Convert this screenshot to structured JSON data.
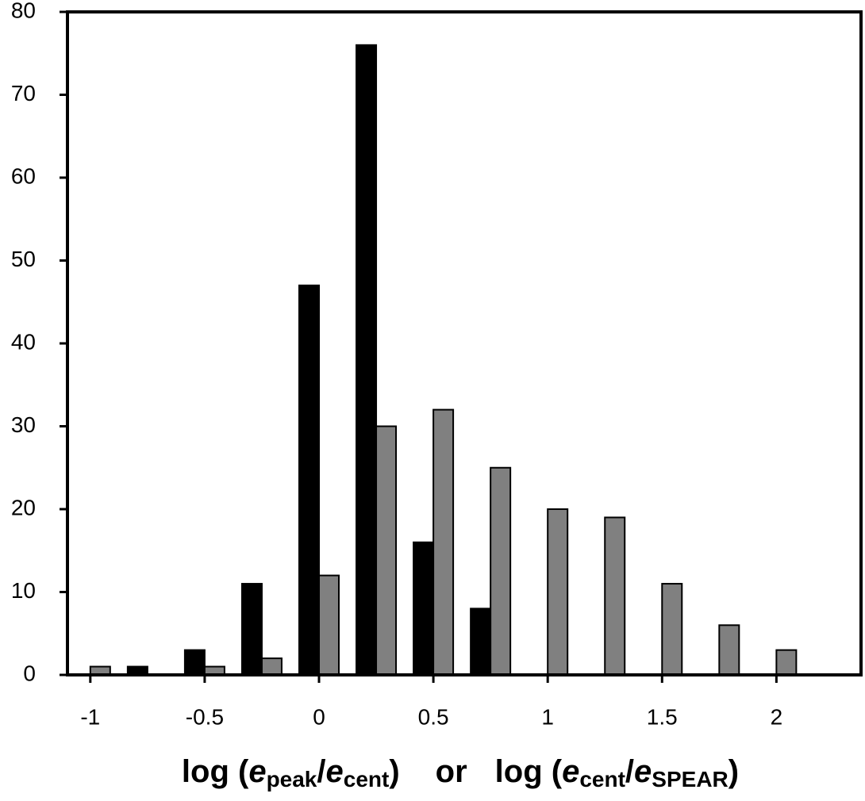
{
  "chart_data": {
    "type": "bar",
    "x": [
      -1,
      -0.75,
      -0.5,
      -0.25,
      0,
      0.25,
      0.5,
      0.75,
      1,
      1.25,
      1.5,
      1.75,
      2
    ],
    "series": [
      {
        "color": "#000000",
        "values": [
          0,
          1,
          3,
          11,
          47,
          76,
          16,
          8,
          0,
          0,
          0,
          0,
          0
        ]
      },
      {
        "color": "#808080",
        "values": [
          1,
          0,
          1,
          2,
          12,
          30,
          32,
          25,
          20,
          19,
          11,
          6,
          3
        ]
      }
    ],
    "xlim": [
      -1.1,
      2.37
    ],
    "xticks": [
      -1,
      -0.5,
      0,
      0.5,
      1,
      1.5,
      2
    ],
    "ylim": [
      0,
      80
    ],
    "yticks": [
      0,
      10,
      20,
      30,
      40,
      50,
      60,
      70,
      80
    ],
    "xlabel_parts": [
      "log (",
      "e",
      "peak",
      "/",
      "e",
      "cent",
      ")",
      "or",
      "log (",
      "e",
      "cent",
      "/",
      "e",
      "SPEAR",
      ")"
    ]
  }
}
